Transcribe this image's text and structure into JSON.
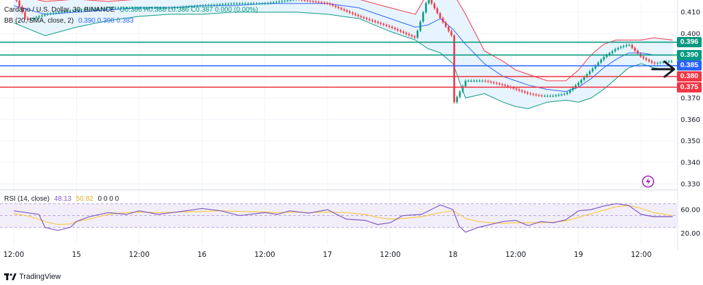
{
  "header": {
    "symbol": "Cardano / U.S. Dollar, 30, BINANCE",
    "ohlc": "O0.386  H0.388  L0.386  C0.387  0.000 (0.00%)",
    "bb_label": "BB (20, SMA, close, 2)",
    "bb_values": "0.390  0.398  0.383"
  },
  "rsi_header": {
    "label": "RSI (14, close)",
    "rsi_value": "48.13",
    "ma_value": "50.82",
    "extras": "0  0  0  0"
  },
  "branding": {
    "name": "TradingView"
  },
  "colors": {
    "up": "#089981",
    "down": "#f23645",
    "bb_upper": "#f23645",
    "bb_basis": "#2962ff",
    "bb_lower": "#089981",
    "bb_fill": "#e3f2fd",
    "rsi_line": "#7e57c2",
    "rsi_ma": "#f7c948",
    "rsi_band": "#ede7f6"
  },
  "chart_data": {
    "type": "line",
    "price_axis": {
      "ticks": [
        0.41,
        0.4,
        0.39,
        0.38,
        0.37,
        0.36,
        0.35,
        0.34,
        0.33
      ],
      "tick_labels": [
        "0.410",
        "0.400",
        "",
        "",
        "0.370",
        "0.360",
        "0.350",
        "0.340",
        "0.330"
      ],
      "ylim": [
        0.3285,
        0.415
      ]
    },
    "time_axis": {
      "labels": [
        "12:00",
        "15",
        "12:00",
        "16",
        "12:00",
        "17",
        "12:00",
        "18",
        "12:00",
        "19",
        "12:00"
      ],
      "label_index": [
        0,
        1,
        2,
        3,
        4,
        5,
        6,
        7,
        8,
        9,
        10
      ]
    },
    "horizontal_levels": [
      {
        "value": 0.396,
        "label": "0.396",
        "color": "#089981"
      },
      {
        "value": 0.39,
        "label": "0.390",
        "color": "#089981"
      },
      {
        "value": 0.385,
        "label": "0.385",
        "color": "#2962ff"
      },
      {
        "value": 0.38,
        "label": "0.380",
        "color": "#f23645"
      },
      {
        "value": 0.375,
        "label": "0.375",
        "color": "#f23645"
      }
    ],
    "price_path": {
      "x": [
        0,
        0.2,
        0.5,
        1.0,
        1.5,
        2.0,
        2.5,
        3.0,
        3.5,
        4.0,
        4.5,
        5.0,
        5.5,
        6.0,
        6.4,
        6.6,
        6.8,
        7.0,
        7.02,
        7.2,
        7.5,
        7.8,
        8.0,
        8.2,
        8.4,
        8.6,
        8.8,
        9.0,
        9.2,
        9.4,
        9.6,
        9.8,
        10.0,
        10.2,
        10.4,
        10.5
      ],
      "y": [
        0.418,
        0.406,
        0.409,
        0.411,
        0.412,
        0.412,
        0.412,
        0.413,
        0.414,
        0.414,
        0.416,
        0.414,
        0.408,
        0.403,
        0.398,
        0.417,
        0.407,
        0.398,
        0.368,
        0.378,
        0.378,
        0.376,
        0.374,
        0.372,
        0.371,
        0.371,
        0.372,
        0.377,
        0.383,
        0.389,
        0.393,
        0.395,
        0.389,
        0.386,
        0.387,
        0.387
      ]
    },
    "bollinger": {
      "x": [
        0,
        0.5,
        1.0,
        1.5,
        2.0,
        2.5,
        3.0,
        3.5,
        4.0,
        4.5,
        5.0,
        5.5,
        6.0,
        6.4,
        6.6,
        6.8,
        7.0,
        7.2,
        7.5,
        7.8,
        8.0,
        8.2,
        8.5,
        8.8,
        9.0,
        9.2,
        9.4,
        9.6,
        9.8,
        10.0,
        10.2,
        10.5
      ],
      "upper": [
        0.418,
        0.415,
        0.416,
        0.415,
        0.416,
        0.416,
        0.417,
        0.416,
        0.418,
        0.418,
        0.418,
        0.416,
        0.412,
        0.409,
        0.419,
        0.421,
        0.419,
        0.409,
        0.392,
        0.387,
        0.383,
        0.381,
        0.378,
        0.378,
        0.383,
        0.39,
        0.395,
        0.397,
        0.397,
        0.397,
        0.398,
        0.397
      ],
      "basis": [
        0.413,
        0.409,
        0.41,
        0.411,
        0.412,
        0.412,
        0.413,
        0.413,
        0.414,
        0.414,
        0.414,
        0.412,
        0.407,
        0.403,
        0.404,
        0.407,
        0.402,
        0.395,
        0.386,
        0.38,
        0.378,
        0.376,
        0.374,
        0.373,
        0.375,
        0.379,
        0.384,
        0.388,
        0.391,
        0.391,
        0.39,
        0.39
      ],
      "lower": [
        0.405,
        0.399,
        0.403,
        0.406,
        0.408,
        0.409,
        0.409,
        0.41,
        0.41,
        0.41,
        0.409,
        0.407,
        0.401,
        0.397,
        0.393,
        0.391,
        0.386,
        0.37,
        0.372,
        0.368,
        0.366,
        0.365,
        0.368,
        0.369,
        0.368,
        0.37,
        0.374,
        0.379,
        0.384,
        0.386,
        0.384,
        0.383
      ]
    },
    "rsi": {
      "axis_ticks": [
        60.0,
        20.0
      ],
      "band": [
        30,
        70
      ],
      "ylim": [
        0,
        90
      ],
      "x": [
        0,
        0.2,
        0.4,
        0.5,
        0.7,
        0.9,
        1.0,
        1.2,
        1.5,
        1.8,
        2.0,
        2.3,
        2.6,
        3.0,
        3.3,
        3.6,
        4.0,
        4.2,
        4.4,
        4.7,
        5.0,
        5.3,
        5.6,
        5.8,
        6.0,
        6.2,
        6.5,
        6.8,
        7.0,
        7.1,
        7.2,
        7.4,
        7.6,
        7.8,
        8.0,
        8.2,
        8.4,
        8.6,
        8.8,
        9.0,
        9.2,
        9.4,
        9.6,
        9.8,
        10.0,
        10.2,
        10.5
      ],
      "rsi": [
        58,
        55,
        52,
        30,
        25,
        30,
        40,
        48,
        55,
        52,
        58,
        52,
        56,
        62,
        58,
        50,
        55,
        52,
        58,
        54,
        60,
        44,
        42,
        35,
        38,
        50,
        52,
        68,
        60,
        32,
        22,
        30,
        35,
        40,
        42,
        33,
        40,
        38,
        43,
        58,
        60,
        66,
        70,
        67,
        52,
        48,
        48
      ],
      "ma": [
        53,
        50,
        44,
        40,
        35,
        36,
        40,
        44,
        52,
        55,
        56,
        55,
        56,
        57,
        58,
        57,
        56,
        55,
        56,
        55,
        56,
        55,
        52,
        47,
        44,
        45,
        48,
        55,
        58,
        52,
        45,
        40,
        38,
        37,
        38,
        38,
        38,
        39,
        41,
        47,
        53,
        59,
        65,
        67,
        62,
        55,
        50
      ]
    }
  }
}
